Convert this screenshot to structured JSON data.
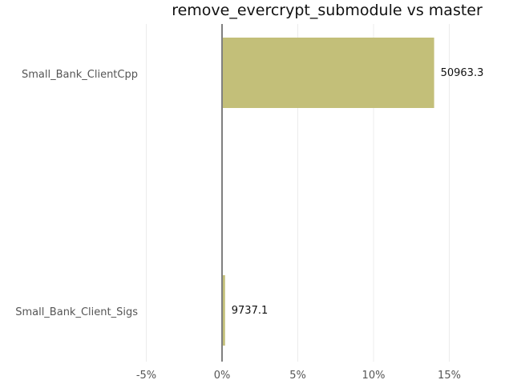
{
  "chart_data": {
    "type": "bar",
    "orientation": "horizontal",
    "title": "remove_evercrypt_submodule vs master",
    "xlabel": "",
    "ylabel": "",
    "categories": [
      "Small_Bank_ClientCpp",
      "Small_Bank_Client_Sigs"
    ],
    "values": [
      14.0,
      0.2
    ],
    "data_labels": [
      "50963.3",
      "9737.1"
    ],
    "xlim": [
      -5,
      17
    ],
    "xticks": [
      -5,
      0,
      5,
      10,
      15
    ],
    "xtick_labels": [
      "-5%",
      "0%",
      "5%",
      "10%",
      "15%"
    ],
    "grid": true,
    "legend": "none",
    "bar_color": "#c3bf79",
    "zero_line_color": "#808080",
    "grid_color": "#ececec"
  }
}
